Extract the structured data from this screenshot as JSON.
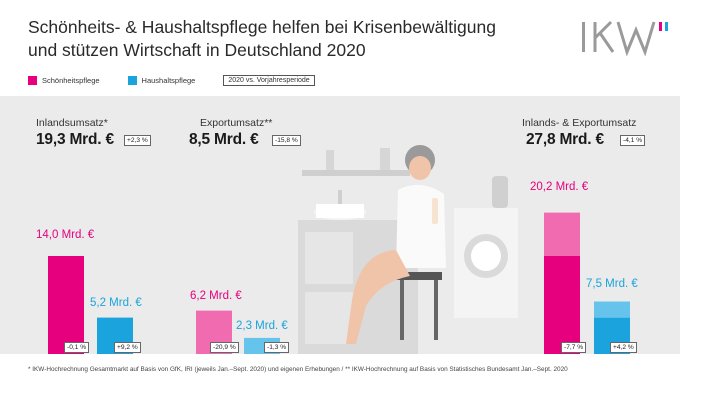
{
  "title": {
    "line1": "Schönheits- & Haushaltspflege helfen bei Krisenbewältigung",
    "line2": "und stützen Wirtschaft in Deutschland 2020"
  },
  "logo": {
    "text": "IKW"
  },
  "legend": {
    "beauty": "Schönheitspflege",
    "household": "Haushaltspflege",
    "period": "2020 vs. Vorjahresperiode"
  },
  "colors": {
    "beauty": "#e6007e",
    "beauty_light": "#f06bb0",
    "household": "#1aa3dc",
    "household_light": "#66c4ec",
    "panel": "#ebebeb"
  },
  "sections": {
    "domestic": {
      "label": "Inlandsumsatz*",
      "total": "19,3 Mrd. €",
      "change": "+2,3 %"
    },
    "export": {
      "label": "Exportumsatz**",
      "total": "8,5 Mrd. €",
      "change": "-15,8 %"
    },
    "combined": {
      "label": "Inlands- & Exportumsatz",
      "total": "27,8 Mrd. €",
      "change": "-4,1 %"
    }
  },
  "bars": {
    "domestic_beauty": {
      "label": "14,0 Mrd. €",
      "change": "-0,1 %"
    },
    "domestic_household": {
      "label": "5,2 Mrd. €",
      "change": "+9,2 %"
    },
    "export_beauty": {
      "label": "6,2 Mrd. €",
      "change": "-20,9 %"
    },
    "export_household": {
      "label": "2,3 Mrd. €",
      "change": "-1,3 %"
    },
    "combined_beauty": {
      "label": "20,2 Mrd. €",
      "change": "-7,7 %"
    },
    "combined_household": {
      "label": "7,5 Mrd. €",
      "change": "+4,2 %"
    }
  },
  "chart_data": {
    "type": "bar",
    "categories": [
      "Inlandsumsatz",
      "Exportumsatz",
      "Inlands- & Exportumsatz"
    ],
    "series": [
      {
        "name": "Schönheitspflege",
        "values": [
          14.0,
          6.2,
          20.2
        ],
        "changes_pct": [
          -0.1,
          -20.9,
          -7.7
        ]
      },
      {
        "name": "Haushaltspflege",
        "values": [
          5.2,
          2.3,
          7.5
        ],
        "changes_pct": [
          9.2,
          -1.3,
          4.2
        ]
      }
    ],
    "totals": [
      19.3,
      8.5,
      27.8
    ],
    "total_changes_pct": [
      2.3,
      -15.8,
      -4.1
    ],
    "combined_breakdown": {
      "beauty_domestic": 14.0,
      "beauty_export": 6.2,
      "household_domestic": 5.2,
      "household_export": 2.3
    },
    "unit": "Mrd. €"
  },
  "footnote": "* IKW-Hochrechnung Gesamtmarkt auf Basis von GfK, IRI (jeweils Jan.–Sept. 2020) und eigenen Erhebungen / ** IKW-Hochrechnung auf Basis von Statistisches Bundesamt Jan.–Sept. 2020"
}
